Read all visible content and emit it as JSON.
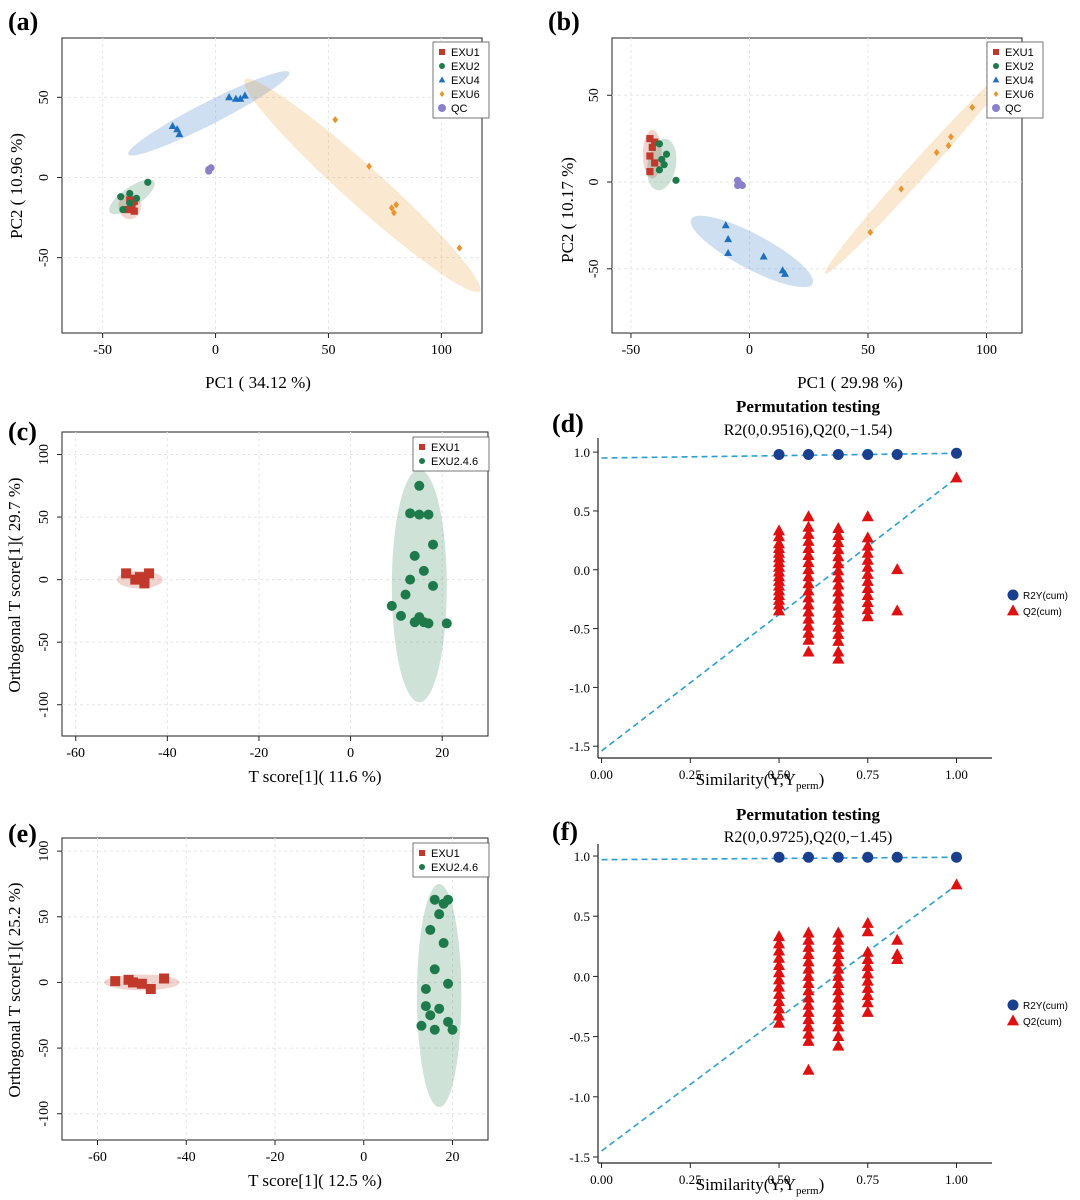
{
  "figure": {
    "panel_labels": [
      "(a)",
      "(b)",
      "(c)",
      "(d)",
      "(e)",
      "(f)"
    ]
  },
  "colors": {
    "EXU1": "#c0392b",
    "EXU2": "#1e7a4a",
    "EXU4": "#1f6fbf",
    "EXU6": "#e8952f",
    "QC": "#8a7fc9",
    "EXU2.4.6": "#1e7a4a",
    "R2Y": "#1a3f8f",
    "Q2": "#e01010",
    "dash": "#2a9fd0",
    "grid": "#e6e6e6"
  },
  "chart_data": [
    {
      "id": "a",
      "type": "scatter",
      "xlabel": "PC1 ( 34.12 %)",
      "ylabel": "PC2 ( 10.96 %)",
      "xlim": [
        -68,
        118
      ],
      "ylim": [
        -97,
        87
      ],
      "xticks": [
        -50,
        0,
        50,
        100
      ],
      "yticks": [
        -50,
        0,
        50
      ],
      "grid": true,
      "legend_position": "top-right",
      "legend": [
        "EXU1",
        "EXU2",
        "EXU4",
        "EXU6",
        "QC"
      ],
      "ellipses": [
        {
          "group": "EXU1",
          "cx": -38,
          "cy": -18,
          "rx": 5,
          "ry": 8,
          "angle": 0
        },
        {
          "group": "EXU2",
          "cx": -37,
          "cy": -12,
          "rx": 12,
          "ry": 6,
          "angle": 35
        },
        {
          "group": "EXU4",
          "cx": -3,
          "cy": 40,
          "rx": 40,
          "ry": 7,
          "angle": 27
        },
        {
          "group": "EXU6",
          "cx": 65,
          "cy": -5,
          "rx": 70,
          "ry": 12,
          "angle": -42
        }
      ],
      "series": [
        {
          "name": "EXU1",
          "marker": "square",
          "points": [
            [
              -38,
              -14
            ],
            [
              -37,
              -18
            ],
            [
              -36,
              -21
            ],
            [
              -39,
              -20
            ],
            [
              -36,
              -15
            ]
          ]
        },
        {
          "name": "EXU2",
          "marker": "circle",
          "points": [
            [
              -42,
              -12
            ],
            [
              -38,
              -10
            ],
            [
              -41,
              -20
            ],
            [
              -35,
              -13
            ],
            [
              -30,
              -3
            ],
            [
              -38,
              -16
            ]
          ]
        },
        {
          "name": "EXU4",
          "marker": "triangle",
          "points": [
            [
              -19,
              32
            ],
            [
              -17,
              30
            ],
            [
              -16,
              27
            ],
            [
              6,
              50
            ],
            [
              9,
              49
            ],
            [
              13,
              51
            ],
            [
              11,
              49
            ]
          ]
        },
        {
          "name": "EXU6",
          "marker": "diamond",
          "points": [
            [
              53,
              36
            ],
            [
              68,
              7
            ],
            [
              78,
              -19
            ],
            [
              80,
              -17
            ],
            [
              79,
              -22
            ],
            [
              108,
              -44
            ]
          ]
        },
        {
          "name": "QC",
          "marker": "circle",
          "points": [
            [
              -3,
              5
            ],
            [
              -2,
              6
            ],
            [
              -3,
              4
            ]
          ]
        }
      ]
    },
    {
      "id": "b",
      "type": "scatter",
      "xlabel": "PC1 ( 29.98 %)",
      "ylabel": "PC2 ( 10.17 %)",
      "xlim": [
        -58,
        115
      ],
      "ylim": [
        -87,
        83
      ],
      "xticks": [
        -50,
        0,
        50,
        100
      ],
      "yticks": [
        -50,
        0,
        50
      ],
      "grid": true,
      "legend_position": "top-right",
      "legend": [
        "EXU1",
        "EXU2",
        "EXU4",
        "EXU6",
        "QC"
      ],
      "ellipses": [
        {
          "group": "EXU1",
          "cx": -41,
          "cy": 16,
          "rx": 4,
          "ry": 14,
          "angle": 0
        },
        {
          "group": "EXU2",
          "cx": -37,
          "cy": 10,
          "rx": 6,
          "ry": 15,
          "angle": -10
        },
        {
          "group": "EXU4",
          "cx": 1,
          "cy": -40,
          "rx": 29,
          "ry": 10,
          "angle": -28
        },
        {
          "group": "EXU6",
          "cx": 72,
          "cy": 8,
          "rx": 60,
          "ry": 5,
          "angle": 48
        }
      ],
      "series": [
        {
          "name": "EXU1",
          "marker": "square",
          "points": [
            [
              -42,
              25
            ],
            [
              -41,
              20
            ],
            [
              -42,
              15
            ],
            [
              -40,
              11
            ],
            [
              -42,
              6
            ],
            [
              -40,
              23
            ]
          ]
        },
        {
          "name": "EXU2",
          "marker": "circle",
          "points": [
            [
              -38,
              22
            ],
            [
              -35,
              16
            ],
            [
              -36,
              10
            ],
            [
              -38,
              7
            ],
            [
              -31,
              1
            ],
            [
              -37,
              13
            ]
          ]
        },
        {
          "name": "EXU4",
          "marker": "triangle",
          "points": [
            [
              -10,
              -25
            ],
            [
              -9,
              -33
            ],
            [
              -9,
              -41
            ],
            [
              6,
              -43
            ],
            [
              14,
              -51
            ],
            [
              15,
              -53
            ]
          ]
        },
        {
          "name": "EXU6",
          "marker": "diamond",
          "points": [
            [
              51,
              -29
            ],
            [
              64,
              -4
            ],
            [
              79,
              17
            ],
            [
              84,
              21
            ],
            [
              85,
              26
            ],
            [
              94,
              43
            ]
          ]
        },
        {
          "name": "QC",
          "marker": "circle",
          "points": [
            [
              -5,
              1
            ],
            [
              -4,
              -1
            ],
            [
              -5,
              -2
            ],
            [
              -3,
              -2
            ]
          ]
        }
      ]
    },
    {
      "id": "c",
      "type": "scatter",
      "xlabel": "T score[1]( 11.6 %)",
      "ylabel": "Orthogonal T score[1]( 29.7 %)",
      "xlim": [
        -63,
        30
      ],
      "ylim": [
        -125,
        118
      ],
      "xticks": [
        -60,
        -40,
        -20,
        0,
        20
      ],
      "yticks": [
        -100,
        -50,
        0,
        50,
        100
      ],
      "grid": true,
      "legend_position": "top-right",
      "legend": [
        "EXU1",
        "EXU2.4.6"
      ],
      "ellipses": [
        {
          "group": "EXU1",
          "cx": -46,
          "cy": 0,
          "rx": 5,
          "ry": 7,
          "angle": 0
        },
        {
          "group": "EXU2.4.6",
          "cx": 15,
          "cy": -5,
          "rx": 6,
          "ry": 93,
          "angle": 0
        }
      ],
      "series": [
        {
          "name": "EXU1",
          "marker": "square",
          "points": [
            [
              -49,
              5
            ],
            [
              -47,
              0
            ],
            [
              -45,
              -1
            ],
            [
              -44,
              5
            ],
            [
              -45,
              -3
            ],
            [
              -46,
              2
            ]
          ]
        },
        {
          "name": "EXU2.4.6",
          "marker": "circle",
          "points": [
            [
              15,
              75
            ],
            [
              13,
              53
            ],
            [
              15,
              52
            ],
            [
              17,
              52
            ],
            [
              18,
              28
            ],
            [
              14,
              19
            ],
            [
              16,
              7
            ],
            [
              13,
              0
            ],
            [
              18,
              -5
            ],
            [
              12,
              -12
            ],
            [
              9,
              -21
            ],
            [
              11,
              -29
            ],
            [
              15,
              -30
            ],
            [
              14,
              -34
            ],
            [
              16,
              -34
            ],
            [
              17,
              -35
            ],
            [
              21,
              -35
            ]
          ]
        }
      ]
    },
    {
      "id": "d",
      "type": "scatter",
      "title": "Permutation testing",
      "subtitle": "R2(0,0.9516),Q2(0,−1.54)",
      "xlabel": "Similarity(Y,Y",
      "xlabel_sub": "perm",
      "xlabel_end": ")",
      "xlim": [
        -0.01,
        1.1
      ],
      "ylim": [
        -1.6,
        1.12
      ],
      "xticks": [
        "0.00",
        "0.25",
        "0.50",
        "0.75",
        "1.00"
      ],
      "yticks": [
        "-1.5",
        "-1.0",
        "-0.5",
        "0.0",
        "0.5",
        "1.0"
      ],
      "legend_position": "right",
      "legend": [
        "R2Y(cum)",
        "Q2(cum)"
      ],
      "lines": [
        {
          "name": "R2Y",
          "x": [
            0,
            1
          ],
          "y": [
            0.95,
            0.99
          ]
        },
        {
          "name": "Q2",
          "x": [
            0,
            1
          ],
          "y": [
            -1.54,
            0.78
          ]
        }
      ],
      "series": [
        {
          "name": "R2Y",
          "marker": "circle",
          "x": [
            0.5,
            0.583,
            0.667,
            0.75,
            0.833,
            1.0
          ],
          "y": [
            0.98,
            0.98,
            0.98,
            0.98,
            0.98,
            0.99
          ]
        },
        {
          "name": "Q2",
          "marker": "triangle",
          "columns": [
            {
              "x": 0.5,
              "y": [
                0.33,
                0.28,
                0.22,
                0.18,
                0.14,
                0.1,
                0.06,
                0.02,
                -0.02,
                -0.06,
                -0.1,
                -0.14,
                -0.18,
                -0.22,
                -0.26,
                -0.3,
                -0.35
              ]
            },
            {
              "x": 0.583,
              "y": [
                0.45,
                0.36,
                0.3,
                0.24,
                0.18,
                0.12,
                0.06,
                0.0,
                -0.06,
                -0.12,
                -0.18,
                -0.24,
                -0.3,
                -0.36,
                -0.42,
                -0.48,
                -0.54,
                -0.6,
                -0.7
              ]
            },
            {
              "x": 0.667,
              "y": [
                0.35,
                0.29,
                0.23,
                0.17,
                0.11,
                0.05,
                -0.01,
                -0.07,
                -0.13,
                -0.19,
                -0.25,
                -0.31,
                -0.37,
                -0.43,
                -0.49,
                -0.55,
                -0.61,
                -0.7,
                -0.76
              ]
            },
            {
              "x": 0.75,
              "y": [
                0.45,
                0.27,
                0.2,
                0.14,
                0.08,
                0.02,
                -0.04,
                -0.1,
                -0.16,
                -0.22,
                -0.28,
                -0.34,
                -0.4
              ]
            },
            {
              "x": 0.833,
              "y": [
                0.0,
                -0.35
              ]
            },
            {
              "x": 1.0,
              "y": [
                0.78
              ]
            }
          ]
        }
      ]
    },
    {
      "id": "e",
      "type": "scatter",
      "xlabel": "T score[1]( 12.5 %)",
      "ylabel": "Orthogonal T score[1]( 25.2 %)",
      "xlim": [
        -68,
        28
      ],
      "ylim": [
        -120,
        110
      ],
      "xticks": [
        -60,
        -40,
        -20,
        0,
        20
      ],
      "yticks": [
        -100,
        -50,
        0,
        50,
        100
      ],
      "grid": true,
      "legend_position": "top-right",
      "legend": [
        "EXU1",
        "EXU2.4.6"
      ],
      "ellipses": [
        {
          "group": "EXU1",
          "cx": -50,
          "cy": 0,
          "rx": 8.5,
          "ry": 6,
          "angle": 0
        },
        {
          "group": "EXU2.4.6",
          "cx": 17,
          "cy": -10,
          "rx": 5,
          "ry": 85,
          "angle": 0
        }
      ],
      "series": [
        {
          "name": "EXU1",
          "marker": "square",
          "points": [
            [
              -56,
              1
            ],
            [
              -53,
              2
            ],
            [
              -52,
              0
            ],
            [
              -50,
              -1
            ],
            [
              -48,
              -5
            ],
            [
              -45,
              3
            ]
          ]
        },
        {
          "name": "EXU2.4.6",
          "marker": "circle",
          "points": [
            [
              16,
              63
            ],
            [
              18,
              60
            ],
            [
              19,
              63
            ],
            [
              17,
              52
            ],
            [
              15,
              40
            ],
            [
              18,
              30
            ],
            [
              16,
              10
            ],
            [
              14,
              -5
            ],
            [
              19,
              -1
            ],
            [
              14,
              -18
            ],
            [
              17,
              -20
            ],
            [
              13,
              -33
            ],
            [
              16,
              -36
            ],
            [
              19,
              -30
            ],
            [
              20,
              -36
            ],
            [
              15,
              -25
            ]
          ]
        }
      ]
    },
    {
      "id": "f",
      "type": "scatter",
      "title": "Permutation testing",
      "subtitle": "R2(0,0.9725),Q2(0,−1.45)",
      "xlabel": "Similarity(Y,Y",
      "xlabel_sub": "perm",
      "xlabel_end": ")",
      "xlim": [
        -0.01,
        1.1
      ],
      "ylim": [
        -1.55,
        1.1
      ],
      "xticks": [
        "0.00",
        "0.25",
        "0.50",
        "0.75",
        "1.00"
      ],
      "yticks": [
        "-1.5",
        "-1.0",
        "-0.5",
        "0.0",
        "0.5",
        "1.0"
      ],
      "legend_position": "right",
      "legend": [
        "R2Y(cum)",
        "Q2(cum)"
      ],
      "lines": [
        {
          "name": "R2Y",
          "x": [
            0,
            1
          ],
          "y": [
            0.97,
            0.99
          ]
        },
        {
          "name": "Q2",
          "x": [
            0,
            1
          ],
          "y": [
            -1.45,
            0.76
          ]
        }
      ],
      "series": [
        {
          "name": "R2Y",
          "marker": "circle",
          "x": [
            0.5,
            0.583,
            0.667,
            0.75,
            0.833,
            1.0
          ],
          "y": [
            0.99,
            0.99,
            0.99,
            0.99,
            0.99,
            0.99
          ]
        },
        {
          "name": "Q2",
          "marker": "triangle",
          "columns": [
            {
              "x": 0.5,
              "y": [
                0.33,
                0.27,
                0.21,
                0.15,
                0.09,
                0.03,
                -0.03,
                -0.09,
                -0.15,
                -0.21,
                -0.27,
                -0.33,
                -0.39
              ]
            },
            {
              "x": 0.583,
              "y": [
                0.36,
                0.3,
                0.24,
                0.18,
                0.12,
                0.06,
                0.0,
                -0.06,
                -0.12,
                -0.18,
                -0.24,
                -0.3,
                -0.36,
                -0.42,
                -0.48,
                -0.54,
                -0.78
              ]
            },
            {
              "x": 0.667,
              "y": [
                0.36,
                0.3,
                0.24,
                0.18,
                0.12,
                0.06,
                0.0,
                -0.06,
                -0.12,
                -0.18,
                -0.24,
                -0.3,
                -0.36,
                -0.42,
                -0.5,
                -0.58
              ]
            },
            {
              "x": 0.75,
              "y": [
                0.44,
                0.37,
                0.2,
                0.14,
                0.08,
                0.02,
                -0.04,
                -0.1,
                -0.16,
                -0.22,
                -0.3
              ]
            },
            {
              "x": 0.833,
              "y": [
                0.3,
                0.18,
                0.14
              ]
            },
            {
              "x": 1.0,
              "y": [
                0.76
              ]
            }
          ]
        }
      ]
    }
  ]
}
